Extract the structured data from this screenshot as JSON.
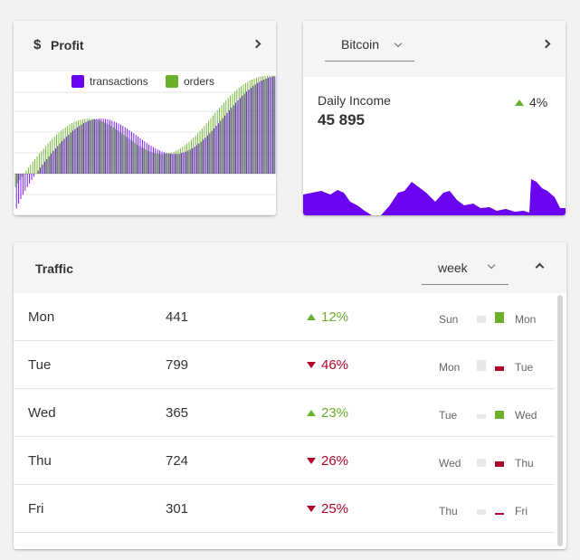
{
  "colors": {
    "transactions": "#6a04f1",
    "orders": "#6ab02b",
    "up": "#6ab02b",
    "down": "#b0062b",
    "bar_prev": "#e8e8e8"
  },
  "profit": {
    "title": "Profit",
    "currency_icon": "$",
    "legend": [
      "transactions",
      "orders"
    ]
  },
  "bitcoin": {
    "selected": "Bitcoin",
    "label": "Daily Income",
    "value": "45 895",
    "trend": "4%"
  },
  "traffic": {
    "title": "Traffic",
    "period": "week",
    "rows": [
      {
        "day": "Mon",
        "count": "441",
        "change": "12%",
        "dir": "up",
        "prev_day": "Sun",
        "cur_day": "Mon",
        "prev_level": 0.5,
        "cur_level": 0.75
      },
      {
        "day": "Tue",
        "count": "799",
        "change": "46%",
        "dir": "down",
        "prev_day": "Mon",
        "cur_day": "Tue",
        "prev_level": 0.75,
        "cur_level": 0.3
      },
      {
        "day": "Wed",
        "count": "365",
        "change": "23%",
        "dir": "up",
        "prev_day": "Tue",
        "cur_day": "Wed",
        "prev_level": 0.3,
        "cur_level": 0.55
      },
      {
        "day": "Thu",
        "count": "724",
        "change": "26%",
        "dir": "down",
        "prev_day": "Wed",
        "cur_day": "Thu",
        "prev_level": 0.55,
        "cur_level": 0.4
      },
      {
        "day": "Fri",
        "count": "301",
        "change": "25%",
        "dir": "down",
        "prev_day": "Thu",
        "cur_day": "Fri",
        "prev_level": 0.4,
        "cur_level": 0.15
      }
    ]
  }
}
